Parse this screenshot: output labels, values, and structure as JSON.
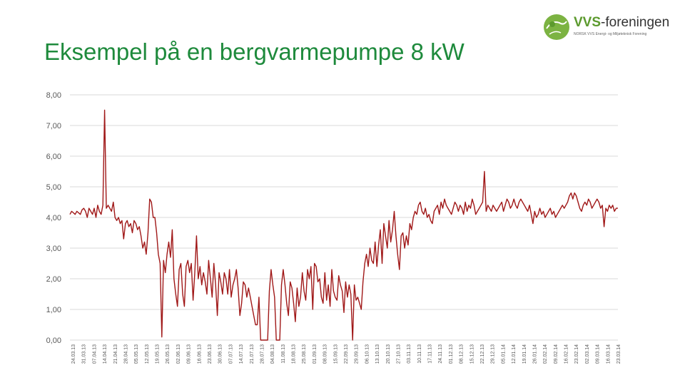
{
  "slide": {
    "title": "Eksempel på en bergvarmepumpe 8 kW"
  },
  "logo": {
    "brand_bold": "VVS",
    "brand_rest": "-foreningen",
    "tagline": "NORSK VVS Energi- og Miljøteknisk Forening"
  },
  "colors": {
    "title": "#1e8a3c",
    "line": "#a01818",
    "grid": "#d9d9d9",
    "logo_green": "#5c9a2e"
  },
  "chart_data": {
    "type": "line",
    "title": "",
    "xlabel": "",
    "ylabel": "",
    "ylim": [
      0,
      8
    ],
    "yticks": [
      "0,00",
      "1,00",
      "2,00",
      "3,00",
      "4,00",
      "5,00",
      "6,00",
      "7,00",
      "8,00"
    ],
    "grid": true,
    "legend": "none",
    "x_labels": [
      "24.03.13",
      "31.03.13",
      "07.04.13",
      "14.04.13",
      "21.04.13",
      "28.04.13",
      "05.05.13",
      "12.05.13",
      "19.05.13",
      "26.05.13",
      "02.06.13",
      "09.06.13",
      "16.06.13",
      "23.06.13",
      "30.06.13",
      "07.07.13",
      "14.07.13",
      "21.07.13",
      "28.07.13",
      "04.08.13",
      "11.08.13",
      "18.08.13",
      "25.08.13",
      "01.09.13",
      "08.09.13",
      "15.09.13",
      "22.09.13",
      "29.09.13",
      "06.10.13",
      "13.10.13",
      "20.10.13",
      "27.10.13",
      "03.11.13",
      "10.11.13",
      "17.11.13",
      "24.11.13",
      "01.12.13",
      "08.12.13",
      "15.12.13",
      "22.12.13",
      "29.12.13",
      "05.01.14",
      "12.01.14",
      "19.01.14",
      "26.01.14",
      "02.02.14",
      "09.02.14",
      "16.02.14",
      "23.02.14",
      "02.03.14",
      "09.03.14",
      "16.03.14",
      "23.03.14"
    ],
    "series": [
      {
        "values": [
          4.1,
          4.2,
          4.15,
          4.1,
          4.2,
          4.15,
          4.1,
          4.25,
          4.3,
          4.2,
          4.0,
          4.3,
          4.2,
          4.1,
          4.3,
          4.0,
          4.4,
          4.2,
          4.1,
          4.4,
          7.5,
          4.3,
          4.4,
          4.3,
          4.2,
          4.5,
          4.0,
          3.9,
          4.0,
          3.8,
          3.9,
          3.3,
          3.8,
          3.9,
          3.7,
          3.8,
          3.5,
          3.9,
          3.8,
          3.6,
          3.7,
          3.4,
          3.0,
          3.2,
          2.8,
          3.5,
          4.6,
          4.5,
          4.0,
          4.0,
          3.5,
          2.8,
          2.5,
          0.1,
          2.6,
          2.2,
          2.8,
          3.2,
          2.7,
          3.6,
          2.0,
          1.5,
          1.1,
          2.3,
          2.5,
          1.5,
          1.1,
          2.4,
          2.6,
          2.2,
          2.5,
          1.3,
          2.2,
          3.4,
          2.0,
          2.4,
          1.8,
          2.2,
          1.9,
          1.5,
          2.6,
          2.0,
          1.4,
          2.5,
          1.8,
          0.8,
          2.2,
          1.9,
          1.5,
          2.2,
          2.0,
          1.5,
          2.3,
          1.4,
          1.8,
          2.0,
          2.3,
          1.7,
          0.8,
          1.2,
          1.9,
          1.8,
          1.4,
          1.7,
          1.4,
          1.1,
          0.8,
          0.5,
          0.5,
          1.4,
          0.0,
          0.0,
          0.0,
          0.0,
          0.0,
          1.6,
          2.3,
          1.8,
          1.4,
          0.0,
          0.0,
          0.0,
          1.8,
          2.3,
          1.8,
          1.2,
          0.8,
          1.9,
          1.7,
          1.2,
          0.6,
          1.7,
          1.1,
          1.4,
          2.2,
          1.6,
          1.3,
          2.3,
          2.0,
          2.4,
          1.0,
          2.5,
          2.4,
          1.9,
          2.0,
          1.4,
          1.2,
          2.2,
          1.3,
          1.8,
          1.1,
          2.3,
          1.6,
          1.4,
          1.3,
          2.1,
          1.8,
          1.6,
          0.9,
          1.9,
          1.4,
          1.8,
          1.5,
          0.0,
          1.8,
          1.3,
          1.4,
          1.2,
          1.0,
          1.9,
          2.5,
          2.8,
          2.4,
          3.0,
          2.6,
          2.5,
          3.2,
          2.4,
          3.1,
          3.6,
          2.5,
          3.8,
          3.4,
          3.0,
          3.9,
          3.2,
          3.6,
          4.2,
          3.4,
          2.8,
          2.3,
          3.4,
          3.5,
          3.0,
          3.4,
          3.1,
          3.8,
          3.6,
          4.0,
          4.2,
          4.1,
          4.4,
          4.5,
          4.2,
          4.1,
          4.3,
          4.0,
          4.1,
          3.9,
          3.8,
          4.2,
          4.3,
          4.4,
          4.1,
          4.5,
          4.3,
          4.6,
          4.4,
          4.3,
          4.2,
          4.1,
          4.3,
          4.5,
          4.4,
          4.2,
          4.4,
          4.3,
          4.1,
          4.5,
          4.2,
          4.4,
          4.3,
          4.6,
          4.4,
          4.1,
          4.2,
          4.3,
          4.4,
          4.5,
          5.5,
          4.2,
          4.4,
          4.3,
          4.2,
          4.4,
          4.3,
          4.2,
          4.3,
          4.4,
          4.5,
          4.2,
          4.4,
          4.6,
          4.5,
          4.3,
          4.4,
          4.6,
          4.4,
          4.3,
          4.5,
          4.6,
          4.5,
          4.4,
          4.3,
          4.2,
          4.4,
          4.1,
          3.8,
          4.2,
          4.0,
          4.1,
          4.3,
          4.1,
          4.2,
          4.0,
          4.1,
          4.2,
          4.3,
          4.1,
          4.2,
          4.0,
          4.1,
          4.2,
          4.3,
          4.4,
          4.3,
          4.4,
          4.5,
          4.7,
          4.8,
          4.6,
          4.8,
          4.7,
          4.5,
          4.3,
          4.2,
          4.4,
          4.5,
          4.4,
          4.6,
          4.5,
          4.3,
          4.4,
          4.5,
          4.6,
          4.5,
          4.3,
          4.4,
          3.7,
          4.3,
          4.2,
          4.4,
          4.3,
          4.4,
          4.2,
          4.3,
          4.3
        ]
      }
    ]
  }
}
